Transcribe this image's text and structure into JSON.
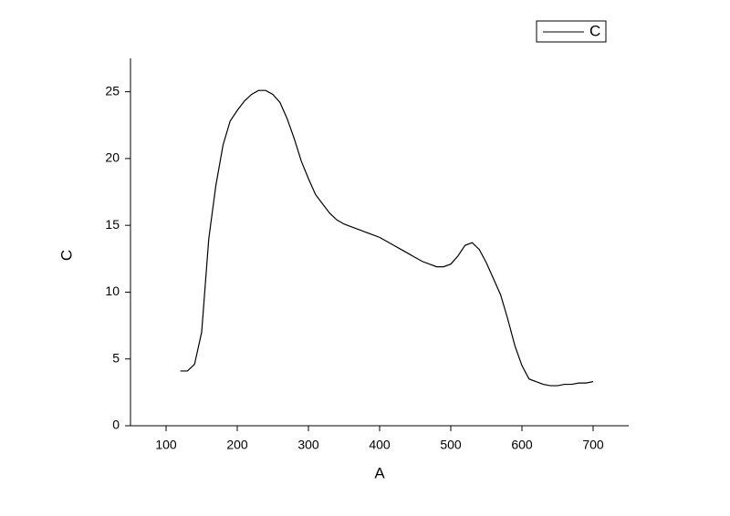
{
  "chart_data": {
    "type": "line",
    "x_label": "A",
    "y_label": "C",
    "x": [
      120,
      130,
      140,
      150,
      160,
      170,
      180,
      190,
      200,
      210,
      220,
      230,
      240,
      250,
      260,
      270,
      280,
      290,
      300,
      310,
      320,
      330,
      340,
      350,
      360,
      370,
      380,
      390,
      400,
      410,
      420,
      430,
      440,
      450,
      460,
      470,
      480,
      490,
      500,
      510,
      520,
      530,
      540,
      550,
      560,
      570,
      580,
      590,
      600,
      610,
      620,
      630,
      640,
      650,
      660,
      670,
      680,
      690,
      700
    ],
    "series": [
      {
        "name": "C",
        "color": "#000000",
        "values": [
          4.1,
          4.1,
          4.6,
          7,
          14,
          18,
          21,
          22.8,
          23.6,
          24.3,
          24.8,
          25.1,
          25.1,
          24.8,
          24.2,
          23,
          21.5,
          19.8,
          18.5,
          17.3,
          16.6,
          15.9,
          15.4,
          15.1,
          14.9,
          14.7,
          14.5,
          14.3,
          14.1,
          13.8,
          13.5,
          13.2,
          12.9,
          12.6,
          12.3,
          12.1,
          11.9,
          11.9,
          12.1,
          12.7,
          13.5,
          13.7,
          13.2,
          12.2,
          11,
          9.8,
          8,
          6,
          4.5,
          3.5,
          3.3,
          3.1,
          3,
          3,
          3.1,
          3.1,
          3.2,
          3.2,
          3.3
        ]
      }
    ],
    "xlim": [
      50,
      750
    ],
    "ylim": [
      0,
      27.5
    ],
    "xticks": [
      100,
      200,
      300,
      400,
      500,
      600,
      700
    ],
    "yticks": [
      0,
      5,
      10,
      15,
      20,
      25
    ],
    "legend": "top-right"
  }
}
